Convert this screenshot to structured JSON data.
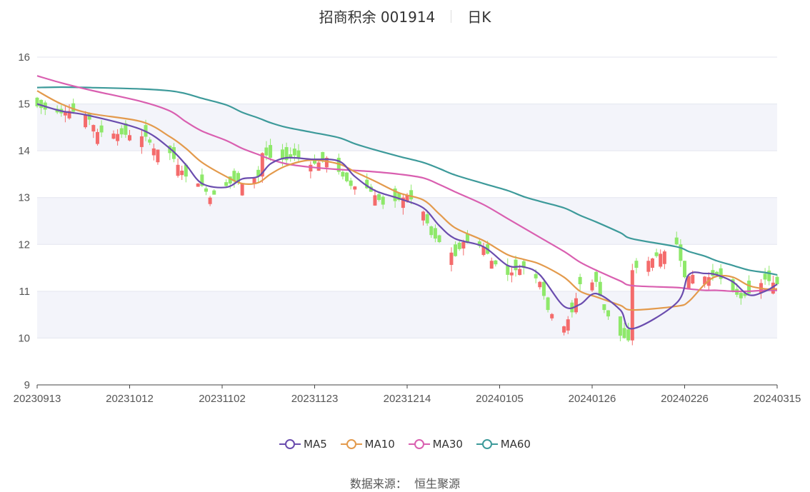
{
  "header": {
    "title": "招商积余 001914",
    "period": "日K"
  },
  "source": {
    "label": "数据来源：",
    "value": "恒生聚源"
  },
  "colors": {
    "up": "#f46b6b",
    "down": "#8ee86a",
    "ma5": "#6a4cae",
    "ma10": "#e39a4c",
    "ma30": "#d95fb0",
    "ma60": "#3d9a9a",
    "band": "#f3f4fa",
    "grid": "#e3e6ef"
  },
  "chart_data": {
    "type": "candlestick",
    "ylim": [
      9,
      16
    ],
    "yticks": [
      9,
      10,
      11,
      12,
      13,
      14,
      15,
      16
    ],
    "xtick_labels": [
      "20230913",
      "20231012",
      "20231102",
      "20231123",
      "20231214",
      "20240105",
      "20240126",
      "20240226",
      "20240315"
    ],
    "start_date": "2023-09-13",
    "end_date": "2024-03-15",
    "legend": [
      {
        "name": "MA5",
        "color_key": "ma5"
      },
      {
        "name": "MA10",
        "color_key": "ma10"
      },
      {
        "name": "MA30",
        "color_key": "ma30"
      },
      {
        "name": "MA60",
        "color_key": "ma60"
      }
    ],
    "close_path": [
      [
        "2023-09-13",
        14.95
      ],
      [
        "2023-09-15",
        14.88
      ],
      [
        "2023-09-19",
        14.8
      ],
      [
        "2023-09-21",
        14.85
      ],
      [
        "2023-09-25",
        14.78
      ],
      [
        "2023-09-27",
        14.55
      ],
      [
        "2023-09-28",
        14.4
      ],
      [
        "2023-10-10",
        14.3
      ],
      [
        "2023-10-12",
        14.05
      ],
      [
        "2023-10-16",
        13.95
      ],
      [
        "2023-10-18",
        13.7
      ],
      [
        "2023-10-20",
        13.45
      ],
      [
        "2023-10-24",
        13.25
      ],
      [
        "2023-10-26",
        13.0
      ],
      [
        "2023-10-30",
        13.25
      ],
      [
        "2023-11-01",
        13.35
      ],
      [
        "2023-11-03",
        13.3
      ],
      [
        "2023-11-07",
        13.45
      ],
      [
        "2023-11-08",
        13.95
      ],
      [
        "2023-11-10",
        13.85
      ],
      [
        "2023-11-14",
        13.8
      ],
      [
        "2023-11-16",
        13.9
      ],
      [
        "2023-11-20",
        13.7
      ],
      [
        "2023-11-22",
        13.75
      ],
      [
        "2023-11-24",
        13.85
      ],
      [
        "2023-11-28",
        13.45
      ],
      [
        "2023-11-30",
        13.25
      ],
      [
        "2023-12-04",
        13.2
      ],
      [
        "2023-12-06",
        13.05
      ],
      [
        "2023-12-08",
        12.85
      ],
      [
        "2023-12-12",
        12.95
      ],
      [
        "2023-12-14",
        13.05
      ],
      [
        "2023-12-18",
        12.7
      ],
      [
        "2023-12-20",
        12.2
      ],
      [
        "2023-12-22",
        12.05
      ],
      [
        "2023-12-26",
        11.75
      ],
      [
        "2023-12-28",
        12.05
      ],
      [
        "2024-01-02",
        11.95
      ],
      [
        "2024-01-04",
        11.65
      ],
      [
        "2024-01-08",
        11.35
      ],
      [
        "2024-01-10",
        11.45
      ],
      [
        "2024-01-12",
        11.5
      ],
      [
        "2024-01-16",
        11.2
      ],
      [
        "2024-01-18",
        10.6
      ],
      [
        "2024-01-22",
        10.25
      ],
      [
        "2024-01-24",
        10.55
      ],
      [
        "2024-01-26",
        11.15
      ],
      [
        "2024-01-30",
        11.2
      ],
      [
        "2024-02-01",
        10.6
      ],
      [
        "2024-02-05",
        10.05
      ],
      [
        "2024-02-07",
        9.95
      ],
      [
        "2024-02-08",
        11.45
      ],
      [
        "2024-02-19",
        12.0
      ],
      [
        "2024-02-21",
        11.3
      ],
      [
        "2024-02-23",
        11.35
      ],
      [
        "2024-02-27",
        11.3
      ],
      [
        "2024-02-29",
        11.35
      ],
      [
        "2024-03-04",
        11.0
      ],
      [
        "2024-03-06",
        10.85
      ],
      [
        "2024-03-08",
        10.95
      ],
      [
        "2024-03-12",
        11.25
      ],
      [
        "2024-03-15",
        11.15
      ]
    ],
    "ma_paths": {
      "ma5": [
        [
          "2023-09-13",
          15.0
        ],
        [
          "2023-09-19",
          14.85
        ],
        [
          "2023-09-26",
          14.75
        ],
        [
          "2023-10-09",
          14.45
        ],
        [
          "2023-10-16",
          14.05
        ],
        [
          "2023-10-20",
          13.7
        ],
        [
          "2023-10-24",
          13.3
        ],
        [
          "2023-10-30",
          13.22
        ],
        [
          "2023-11-03",
          13.4
        ],
        [
          "2023-11-07",
          13.45
        ],
        [
          "2023-11-10",
          13.72
        ],
        [
          "2023-11-14",
          13.85
        ],
        [
          "2023-11-20",
          13.82
        ],
        [
          "2023-11-27",
          13.78
        ],
        [
          "2023-12-01",
          13.45
        ],
        [
          "2023-12-06",
          13.15
        ],
        [
          "2023-12-12",
          12.98
        ],
        [
          "2023-12-18",
          12.78
        ],
        [
          "2023-12-22",
          12.4
        ],
        [
          "2023-12-26",
          12.12
        ],
        [
          "2024-01-02",
          11.95
        ],
        [
          "2024-01-08",
          11.55
        ],
        [
          "2024-01-12",
          11.52
        ],
        [
          "2024-01-16",
          11.35
        ],
        [
          "2024-01-22",
          10.68
        ],
        [
          "2024-01-26",
          10.72
        ],
        [
          "2024-01-30",
          10.95
        ],
        [
          "2024-02-05",
          10.6
        ],
        [
          "2024-02-08",
          10.2
        ],
        [
          "2024-02-19",
          10.75
        ],
        [
          "2024-02-22",
          11.35
        ],
        [
          "2024-02-26",
          11.38
        ],
        [
          "2024-02-29",
          11.35
        ],
        [
          "2024-03-04",
          11.2
        ],
        [
          "2024-03-08",
          10.92
        ],
        [
          "2024-03-12",
          11.0
        ],
        [
          "2024-03-15",
          11.15
        ]
      ],
      "ma10": [
        [
          "2023-09-13",
          15.28
        ],
        [
          "2023-09-19",
          15.0
        ],
        [
          "2023-09-26",
          14.8
        ],
        [
          "2023-10-09",
          14.62
        ],
        [
          "2023-10-16",
          14.3
        ],
        [
          "2023-10-20",
          14.05
        ],
        [
          "2023-10-24",
          13.75
        ],
        [
          "2023-10-30",
          13.45
        ],
        [
          "2023-11-03",
          13.3
        ],
        [
          "2023-11-07",
          13.32
        ],
        [
          "2023-11-10",
          13.5
        ],
        [
          "2023-11-14",
          13.68
        ],
        [
          "2023-11-20",
          13.8
        ],
        [
          "2023-11-27",
          13.72
        ],
        [
          "2023-12-01",
          13.55
        ],
        [
          "2023-12-06",
          13.35
        ],
        [
          "2023-12-12",
          13.1
        ],
        [
          "2023-12-18",
          12.95
        ],
        [
          "2023-12-22",
          12.65
        ],
        [
          "2023-12-26",
          12.35
        ],
        [
          "2024-01-02",
          12.08
        ],
        [
          "2024-01-08",
          11.78
        ],
        [
          "2024-01-12",
          11.68
        ],
        [
          "2024-01-16",
          11.58
        ],
        [
          "2024-01-22",
          11.3
        ],
        [
          "2024-01-26",
          11.0
        ],
        [
          "2024-01-30",
          10.88
        ],
        [
          "2024-02-05",
          10.7
        ],
        [
          "2024-02-08",
          10.6
        ],
        [
          "2024-02-19",
          10.68
        ],
        [
          "2024-02-22",
          10.78
        ],
        [
          "2024-02-26",
          11.15
        ],
        [
          "2024-02-29",
          11.32
        ],
        [
          "2024-03-04",
          11.3
        ],
        [
          "2024-03-08",
          11.12
        ],
        [
          "2024-03-12",
          11.05
        ],
        [
          "2024-03-15",
          11.05
        ]
      ],
      "ma30": [
        [
          "2023-09-13",
          15.6
        ],
        [
          "2023-09-19",
          15.45
        ],
        [
          "2023-09-26",
          15.3
        ],
        [
          "2023-10-09",
          15.05
        ],
        [
          "2023-10-16",
          14.85
        ],
        [
          "2023-10-20",
          14.62
        ],
        [
          "2023-10-24",
          14.42
        ],
        [
          "2023-10-30",
          14.22
        ],
        [
          "2023-11-03",
          14.05
        ],
        [
          "2023-11-07",
          13.92
        ],
        [
          "2023-11-10",
          13.82
        ],
        [
          "2023-11-14",
          13.72
        ],
        [
          "2023-11-20",
          13.65
        ],
        [
          "2023-11-27",
          13.6
        ],
        [
          "2023-12-01",
          13.58
        ],
        [
          "2023-12-06",
          13.55
        ],
        [
          "2023-12-12",
          13.5
        ],
        [
          "2023-12-18",
          13.42
        ],
        [
          "2023-12-22",
          13.28
        ],
        [
          "2023-12-26",
          13.12
        ],
        [
          "2024-01-02",
          12.85
        ],
        [
          "2024-01-08",
          12.55
        ],
        [
          "2024-01-12",
          12.35
        ],
        [
          "2024-01-16",
          12.15
        ],
        [
          "2024-01-22",
          11.85
        ],
        [
          "2024-01-26",
          11.62
        ],
        [
          "2024-01-30",
          11.45
        ],
        [
          "2024-02-05",
          11.22
        ],
        [
          "2024-02-08",
          11.12
        ],
        [
          "2024-02-19",
          11.08
        ],
        [
          "2024-02-22",
          11.05
        ],
        [
          "2024-02-26",
          11.02
        ],
        [
          "2024-02-29",
          11.02
        ],
        [
          "2024-03-04",
          11.0
        ],
        [
          "2024-03-08",
          11.0
        ],
        [
          "2024-03-12",
          11.02
        ],
        [
          "2024-03-15",
          11.02
        ]
      ],
      "ma60": [
        [
          "2023-09-13",
          15.35
        ],
        [
          "2023-09-19",
          15.36
        ],
        [
          "2023-09-26",
          15.35
        ],
        [
          "2023-10-09",
          15.32
        ],
        [
          "2023-10-16",
          15.28
        ],
        [
          "2023-10-20",
          15.22
        ],
        [
          "2023-10-24",
          15.12
        ],
        [
          "2023-10-30",
          14.98
        ],
        [
          "2023-11-03",
          14.82
        ],
        [
          "2023-11-07",
          14.7
        ],
        [
          "2023-11-10",
          14.6
        ],
        [
          "2023-11-14",
          14.5
        ],
        [
          "2023-11-20",
          14.4
        ],
        [
          "2023-11-27",
          14.28
        ],
        [
          "2023-12-01",
          14.15
        ],
        [
          "2023-12-06",
          14.02
        ],
        [
          "2023-12-12",
          13.88
        ],
        [
          "2023-12-18",
          13.75
        ],
        [
          "2023-12-22",
          13.62
        ],
        [
          "2023-12-26",
          13.48
        ],
        [
          "2024-01-02",
          13.3
        ],
        [
          "2024-01-08",
          13.15
        ],
        [
          "2024-01-12",
          13.02
        ],
        [
          "2024-01-16",
          12.92
        ],
        [
          "2024-01-22",
          12.78
        ],
        [
          "2024-01-26",
          12.62
        ],
        [
          "2024-01-30",
          12.48
        ],
        [
          "2024-02-05",
          12.25
        ],
        [
          "2024-02-08",
          12.12
        ],
        [
          "2024-02-19",
          11.95
        ],
        [
          "2024-02-22",
          11.85
        ],
        [
          "2024-02-26",
          11.75
        ],
        [
          "2024-02-29",
          11.65
        ],
        [
          "2024-03-04",
          11.55
        ],
        [
          "2024-03-08",
          11.45
        ],
        [
          "2024-03-12",
          11.4
        ],
        [
          "2024-03-15",
          11.35
        ]
      ]
    }
  }
}
